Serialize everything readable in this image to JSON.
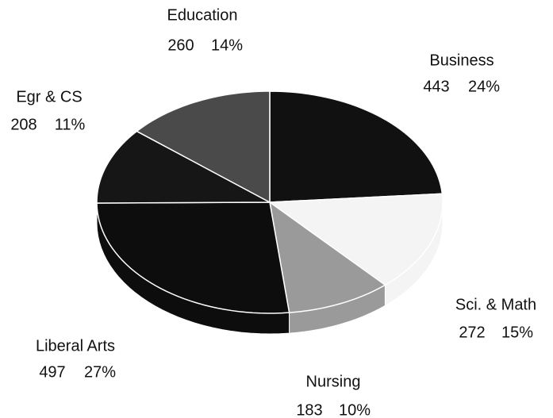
{
  "chart_data": {
    "type": "pie",
    "categories": [
      "Business",
      "Sci. & Math",
      "Nursing",
      "Liberal Arts",
      "Egr & CS",
      "Education"
    ],
    "values": [
      443,
      272,
      183,
      497,
      208,
      260
    ],
    "percent_labels": [
      "24%",
      "15%",
      "10%",
      "27%",
      "11%",
      "14%"
    ],
    "colors": [
      "#111111",
      "#f4f4f4",
      "#9a9a9a",
      "#0d0d0d",
      "#161616",
      "#4a4a4a"
    ]
  }
}
